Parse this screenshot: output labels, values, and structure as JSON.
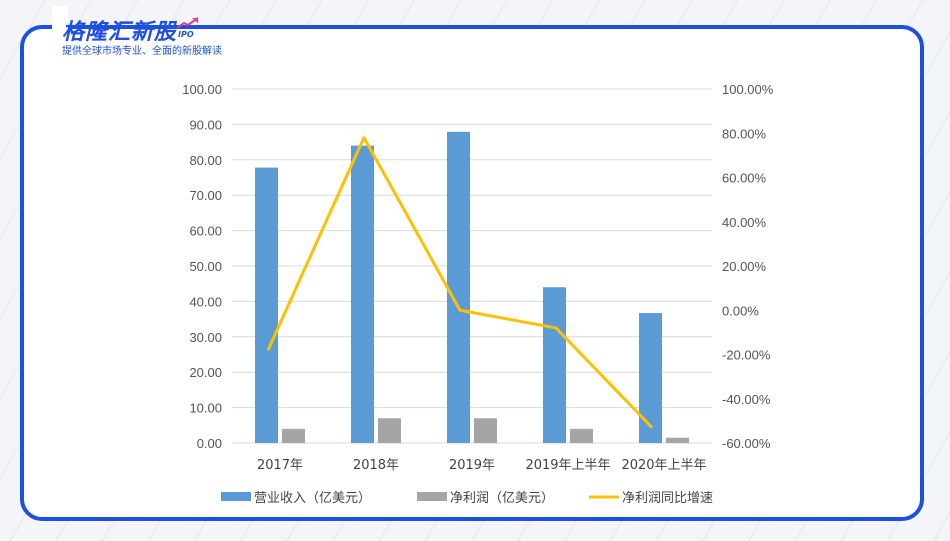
{
  "brand": {
    "name": "格隆汇新股",
    "tag": "IPO",
    "subtitle": "提供全球市场专业、全面的新股解读"
  },
  "chart_data": {
    "type": "bar",
    "categories": [
      "2017年",
      "2018年",
      "2019年",
      "2019年上半年",
      "2020年上半年"
    ],
    "series": [
      {
        "name": "营业收入（亿美元）",
        "type": "bar",
        "axis": "left",
        "color": "#5b9bd5",
        "values": [
          77.8,
          84.0,
          87.9,
          44.0,
          36.7
        ]
      },
      {
        "name": "净利润（亿美元）",
        "type": "bar",
        "axis": "left",
        "color": "#a5a5a5",
        "values": [
          4.0,
          7.0,
          7.0,
          4.0,
          1.5
        ]
      },
      {
        "name": "净利润同比增速",
        "type": "line",
        "axis": "right",
        "color": "#ffc000",
        "values": [
          -0.18,
          0.78,
          0.0,
          -0.08,
          -0.53
        ]
      }
    ],
    "y_left": {
      "min": 0,
      "max": 100,
      "step": 10,
      "tick_labels": [
        "0.00",
        "10.00",
        "20.00",
        "30.00",
        "40.00",
        "50.00",
        "60.00",
        "70.00",
        "80.00",
        "90.00",
        "100.00"
      ]
    },
    "y_right": {
      "min": -0.6,
      "max": 1.0,
      "step": 0.2,
      "tick_labels": [
        "-60.00%",
        "-40.00%",
        "-20.00%",
        "0.00%",
        "20.00%",
        "40.00%",
        "60.00%",
        "80.00%",
        "100.00%"
      ]
    },
    "title": "",
    "xlabel": "",
    "ylabel": "",
    "grid": true,
    "legend_position": "bottom",
    "colors": {
      "frame": "#1f4fe0",
      "grid": "#d9d9d9"
    }
  }
}
